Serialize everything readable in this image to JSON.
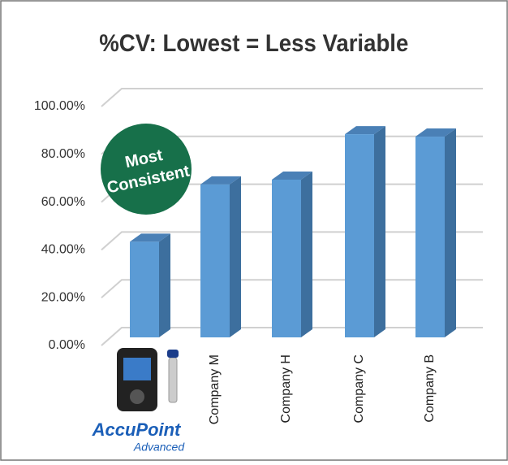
{
  "chart_data": {
    "type": "bar3d",
    "title": "%CV: Lowest = Less Variable",
    "categories": [
      null,
      "Company M",
      "Company H",
      "Company C",
      "Company B"
    ],
    "values": [
      40,
      64,
      66,
      85,
      84
    ],
    "color": "#5b9bd5",
    "ylim": [
      0,
      100
    ],
    "yticks": [
      {
        "value": 0,
        "label": "0.00%"
      },
      {
        "value": 20,
        "label": "20.00%"
      },
      {
        "value": 40,
        "label": "40.00%"
      },
      {
        "value": 60,
        "label": "60.00%"
      },
      {
        "value": 80,
        "label": "80.00%"
      },
      {
        "value": 100,
        "label": "100.00%"
      }
    ],
    "grid": true,
    "annotations": [
      "Most",
      "Consistent"
    ],
    "logo": {
      "name": "AccuPoint",
      "subtitle": "Advanced"
    }
  }
}
